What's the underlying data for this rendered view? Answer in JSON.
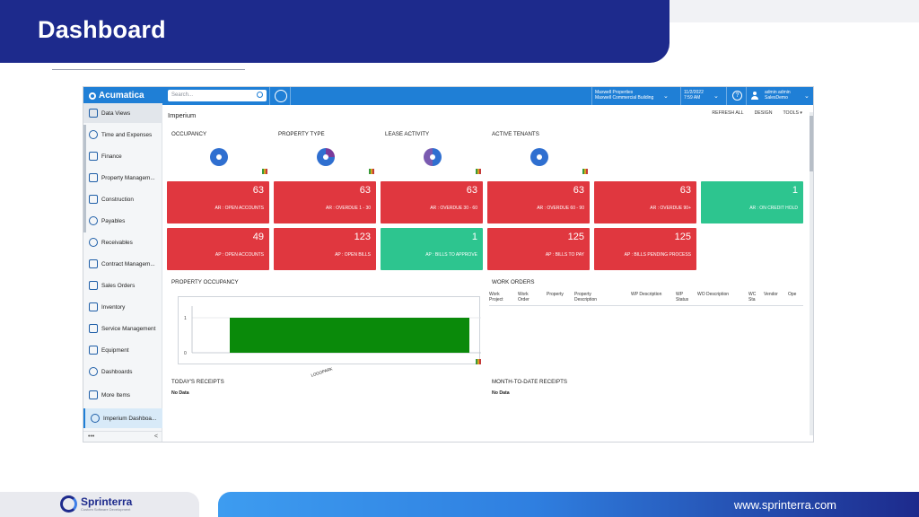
{
  "slide": {
    "title": "Dashboard",
    "website": "www.sprinterra.com",
    "brand_name": "Sprinterra",
    "brand_tagline": "Custom Software Development",
    "colors": {
      "banner": "#1d2a8c",
      "accent_blue": "#3d9cf0"
    }
  },
  "app": {
    "logo": "Acumatica",
    "search_placeholder": "Search...",
    "company": "Maxwell Properties",
    "branch": "Maxwell Commercial Building",
    "date": "11/2/2022",
    "time": "7:59 AM",
    "user": "admin admin",
    "tenant": "SalesDemo",
    "icons": [
      "history-icon",
      "help-icon",
      "user-icon",
      "search-icon"
    ]
  },
  "sidebar": {
    "items": [
      {
        "label": "Data Views",
        "icon": "data-views-icon"
      },
      {
        "label": "Time and Expenses",
        "icon": "clock-icon"
      },
      {
        "label": "Finance",
        "icon": "finance-icon"
      },
      {
        "label": "Property Managem...",
        "icon": "building-icon"
      },
      {
        "label": "Construction",
        "icon": "construction-icon"
      },
      {
        "label": "Payables",
        "icon": "minus-circle-icon"
      },
      {
        "label": "Receivables",
        "icon": "plus-circle-icon"
      },
      {
        "label": "Contract Managem...",
        "icon": "contract-icon"
      },
      {
        "label": "Sales Orders",
        "icon": "edit-icon"
      },
      {
        "label": "Inventory",
        "icon": "truck-icon"
      },
      {
        "label": "Service Management",
        "icon": "service-icon"
      },
      {
        "label": "Equipment",
        "icon": "wrench-icon"
      },
      {
        "label": "Dashboards",
        "icon": "gauge-icon"
      },
      {
        "label": "More Items",
        "icon": "grid-icon"
      },
      {
        "label": "Imperium Dashboa...",
        "icon": "gauge-icon"
      }
    ],
    "more": "•••",
    "collapse": "<"
  },
  "dashboard": {
    "title": "Imperium",
    "actions": [
      "REFRESH ALL",
      "DESIGN",
      "TOOLS ▾"
    ],
    "donut_sections": [
      "OCCUPANCY",
      "PROPERTY TYPE",
      "LEASE ACTIVITY",
      "ACTIVE TENANTS"
    ],
    "tiles": [
      {
        "value": "63",
        "label": "AR : OPEN ACCOUNTS",
        "color": "red"
      },
      {
        "value": "63",
        "label": "AR : OVERDUE 1 - 30",
        "color": "red"
      },
      {
        "value": "63",
        "label": "AR : OVERDUE 30 - 60",
        "color": "red"
      },
      {
        "value": "63",
        "label": "AR : OVERDUE 60 - 90",
        "color": "red"
      },
      {
        "value": "63",
        "label": "AR : OVERDUE 90+",
        "color": "red"
      },
      {
        "value": "1",
        "label": "AR : ON CREDIT HOLD",
        "color": "green"
      },
      {
        "value": "49",
        "label": "AP : OPEN ACCOUNTS",
        "color": "red"
      },
      {
        "value": "123",
        "label": "AP : OPEN BILLS",
        "color": "red"
      },
      {
        "value": "1",
        "label": "AP : BILLS TO APPROVE",
        "color": "green"
      },
      {
        "value": "125",
        "label": "AP : BILLS TO PAY",
        "color": "red"
      },
      {
        "value": "125",
        "label": "AP : BILLS PENDING PROCESS",
        "color": "red"
      }
    ],
    "property_occupancy": {
      "title": "PROPERTY OCCUPANCY",
      "y_ticks": [
        "1",
        "0"
      ],
      "category": "LOGOPARK",
      "value": 1,
      "bar_color": "#0a8a0a"
    },
    "work_orders": {
      "title": "WORK ORDERS",
      "headers": [
        "Work Project",
        "Work Order",
        "Property",
        "Property Description",
        "WP Description",
        "WP Status",
        "WO Description",
        "WC Sta",
        "Vendor",
        "Ope"
      ]
    },
    "todays_receipts": {
      "title": "TODAY'S RECEIPTS",
      "empty": "No Data"
    },
    "mtd_receipts": {
      "title": "MONTH-TO-DATE RECEIPTS",
      "empty": "No Data"
    }
  }
}
